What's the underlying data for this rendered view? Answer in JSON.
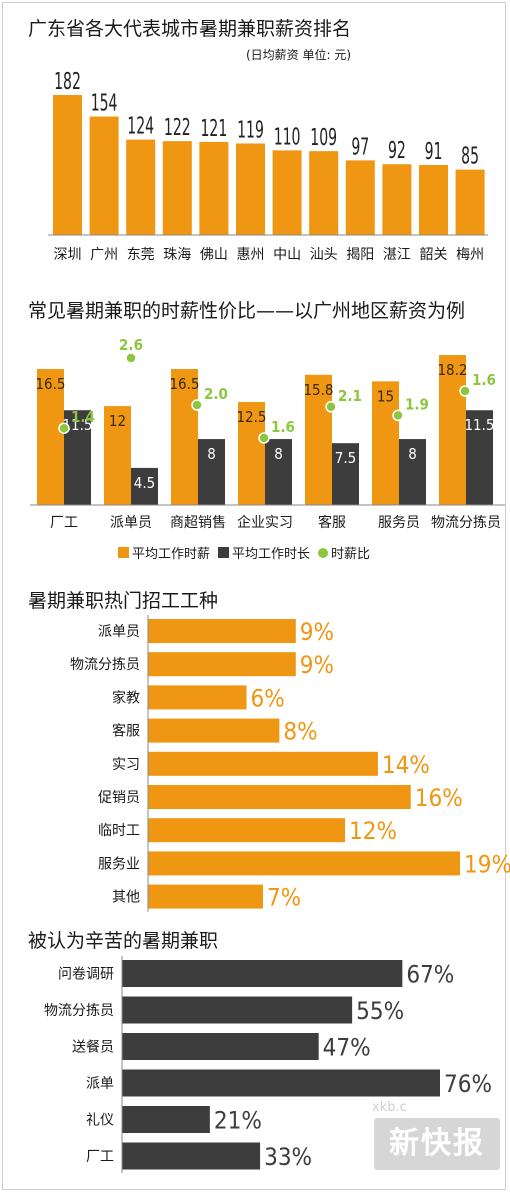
{
  "colors": {
    "orange": "#ef9612",
    "dark": "#3d3d3d",
    "green": "#8cc63f",
    "text": "#1a1a1a"
  },
  "chart1": {
    "title": "广东省各大代表城市暑期兼职薪资排名",
    "subtitle": "(日均薪资 单位: 元)"
  },
  "chart2": {
    "title": "常见暑期兼职的时薪性价比——以广州地区薪资为例",
    "legend": {
      "orange": "平均工作时薪",
      "dark": "平均工作时长",
      "green": "时薪比"
    }
  },
  "chart3": {
    "title": "暑期兼职热门招工工种"
  },
  "chart4": {
    "title": "被认为辛苦的暑期兼职"
  },
  "watermark": {
    "text": "新快报",
    "sub": "xkb.c"
  },
  "chart_data": [
    {
      "type": "bar",
      "title": "广东省各大代表城市暑期兼职薪资排名",
      "subtitle": "(日均薪资 单位: 元)",
      "categories": [
        "深圳",
        "广州",
        "东莞",
        "珠海",
        "佛山",
        "惠州",
        "中山",
        "汕头",
        "揭阳",
        "湛江",
        "韶关",
        "梅州"
      ],
      "values": [
        182,
        154,
        124,
        122,
        121,
        119,
        110,
        109,
        97,
        92,
        91,
        85
      ],
      "ylim": [
        0,
        182
      ]
    },
    {
      "type": "bar",
      "title": "常见暑期兼职的时薪性价比——以广州地区薪资为例",
      "categories": [
        "厂工",
        "派单员",
        "商超销售",
        "企业实习",
        "客服",
        "服务员",
        "物流分拣员"
      ],
      "series": [
        {
          "name": "平均工作时薪",
          "values": [
            16.5,
            12,
            16.5,
            12.5,
            15.8,
            15,
            18.2
          ]
        },
        {
          "name": "平均工作时长",
          "values": [
            11.5,
            4.5,
            8,
            8,
            7.5,
            8,
            11.5
          ]
        },
        {
          "name": "时薪比",
          "values": [
            1.4,
            2.6,
            2.0,
            1.6,
            2.1,
            1.9,
            1.6
          ]
        }
      ],
      "ylim": [
        0,
        18.2
      ]
    },
    {
      "type": "bar",
      "orientation": "horizontal",
      "title": "暑期兼职热门招工工种",
      "categories": [
        "派单员",
        "物流分拣员",
        "家教",
        "客服",
        "实习",
        "促销员",
        "临时工",
        "服务业",
        "其他"
      ],
      "values": [
        9,
        9,
        6,
        8,
        14,
        16,
        12,
        19,
        7
      ],
      "unit": "%",
      "xlim": [
        0,
        19
      ]
    },
    {
      "type": "bar",
      "orientation": "horizontal",
      "title": "被认为辛苦的暑期兼职",
      "categories": [
        "问卷调研",
        "物流分拣员",
        "送餐员",
        "派单",
        "礼仪",
        "厂工"
      ],
      "values": [
        67,
        55,
        47,
        76,
        21,
        33
      ],
      "unit": "%",
      "xlim": [
        0,
        76
      ]
    }
  ]
}
